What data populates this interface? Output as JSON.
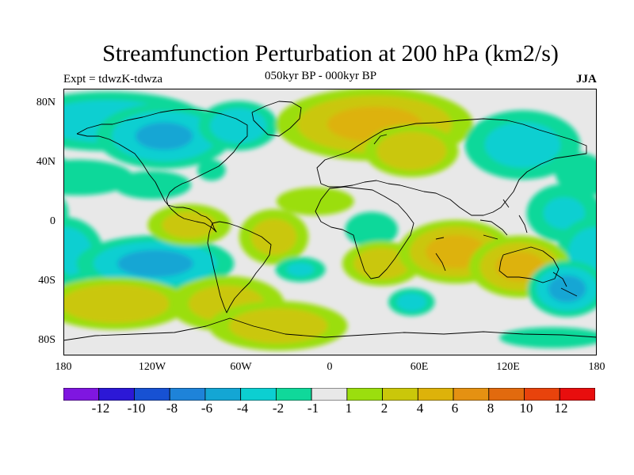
{
  "title": "Streamfunction Perturbation at 200 hPa (km2/s)",
  "subtitle_left": "Expt = tdwzK-tdwza",
  "subtitle_center": "050kyr BP - 000kyr BP",
  "subtitle_right": "JJA",
  "y_ticks": [
    "80N",
    "40N",
    "0",
    "40S",
    "80S"
  ],
  "x_ticks": [
    "180",
    "120W",
    "60W",
    "0",
    "60E",
    "120E",
    "180"
  ],
  "colorbar": {
    "labels": [
      "-12",
      "-10",
      "-8",
      "-6",
      "-4",
      "-2",
      "-1",
      "1",
      "2",
      "4",
      "6",
      "8",
      "10",
      "12"
    ],
    "colors": [
      "#7f16e0",
      "#2c18d6",
      "#1751d3",
      "#1e83d9",
      "#14a6d4",
      "#0ccfd1",
      "#10d89a",
      "#e8e8e8",
      "#9bde0e",
      "#cac70a",
      "#ddb20a",
      "#e59112",
      "#e26a0e",
      "#e8430c",
      "#e80e0e"
    ]
  },
  "map_data": {
    "projection": "cylindrical equidistant",
    "lon_range": [
      -180,
      180
    ],
    "lat_range": [
      -90,
      90
    ],
    "anomalies": [
      {
        "lon": -150,
        "lat": 68,
        "value": -3,
        "sx": 40,
        "sy": 12
      },
      {
        "lon": -112,
        "lat": 58,
        "value": -4,
        "sx": 25,
        "sy": 12
      },
      {
        "lon": -62,
        "lat": 65,
        "value": -3,
        "sx": 16,
        "sy": 10
      },
      {
        "lon": -170,
        "lat": 30,
        "value": -1.8,
        "sx": 28,
        "sy": 9
      },
      {
        "lon": -120,
        "lat": 25,
        "value": -1.5,
        "sx": 22,
        "sy": 8
      },
      {
        "lon": -80,
        "lat": 35,
        "value": -1.5,
        "sx": 8,
        "sy": 6
      },
      {
        "lon": 30,
        "lat": 66,
        "value": 4.5,
        "sx": 35,
        "sy": 13
      },
      {
        "lon": 55,
        "lat": 48,
        "value": 3.5,
        "sx": 18,
        "sy": 10
      },
      {
        "lon": 130,
        "lat": 52,
        "value": -2.5,
        "sx": 25,
        "sy": 15
      },
      {
        "lon": 168,
        "lat": 35,
        "value": -1.5,
        "sx": 14,
        "sy": 10
      },
      {
        "lon": 158,
        "lat": 6,
        "value": -2,
        "sx": 18,
        "sy": 14
      },
      {
        "lon": -180,
        "lat": -20,
        "value": -3,
        "sx": 16,
        "sy": 14
      },
      {
        "lon": -118,
        "lat": -28,
        "value": -4.5,
        "sx": 28,
        "sy": 10
      },
      {
        "lon": -95,
        "lat": -2,
        "value": 2.5,
        "sx": 18,
        "sy": 9
      },
      {
        "lon": -38,
        "lat": -10,
        "value": 2.5,
        "sx": 15,
        "sy": 12
      },
      {
        "lon": -10,
        "lat": 14,
        "value": 1.5,
        "sx": 22,
        "sy": 8
      },
      {
        "lon": -20,
        "lat": -32,
        "value": -2,
        "sx": 12,
        "sy": 6
      },
      {
        "lon": 28,
        "lat": -5,
        "value": -1.5,
        "sx": 15,
        "sy": 10
      },
      {
        "lon": 35,
        "lat": -28,
        "value": 3,
        "sx": 16,
        "sy": 9
      },
      {
        "lon": 85,
        "lat": -20,
        "value": 5,
        "sx": 20,
        "sy": 11
      },
      {
        "lon": 128,
        "lat": -30,
        "value": 4.5,
        "sx": 18,
        "sy": 11
      },
      {
        "lon": 160,
        "lat": -45,
        "value": -4.5,
        "sx": 14,
        "sy": 10
      },
      {
        "lon": 55,
        "lat": -54,
        "value": -2.5,
        "sx": 10,
        "sy": 6
      },
      {
        "lon": -145,
        "lat": -55,
        "value": 3.5,
        "sx": 28,
        "sy": 10
      },
      {
        "lon": -70,
        "lat": -55,
        "value": 2.5,
        "sx": 25,
        "sy": 12
      },
      {
        "lon": -35,
        "lat": -70,
        "value": 3,
        "sx": 28,
        "sy": 10
      },
      {
        "lon": 150,
        "lat": -78,
        "value": -1.5,
        "sx": 30,
        "sy": 6
      }
    ]
  }
}
